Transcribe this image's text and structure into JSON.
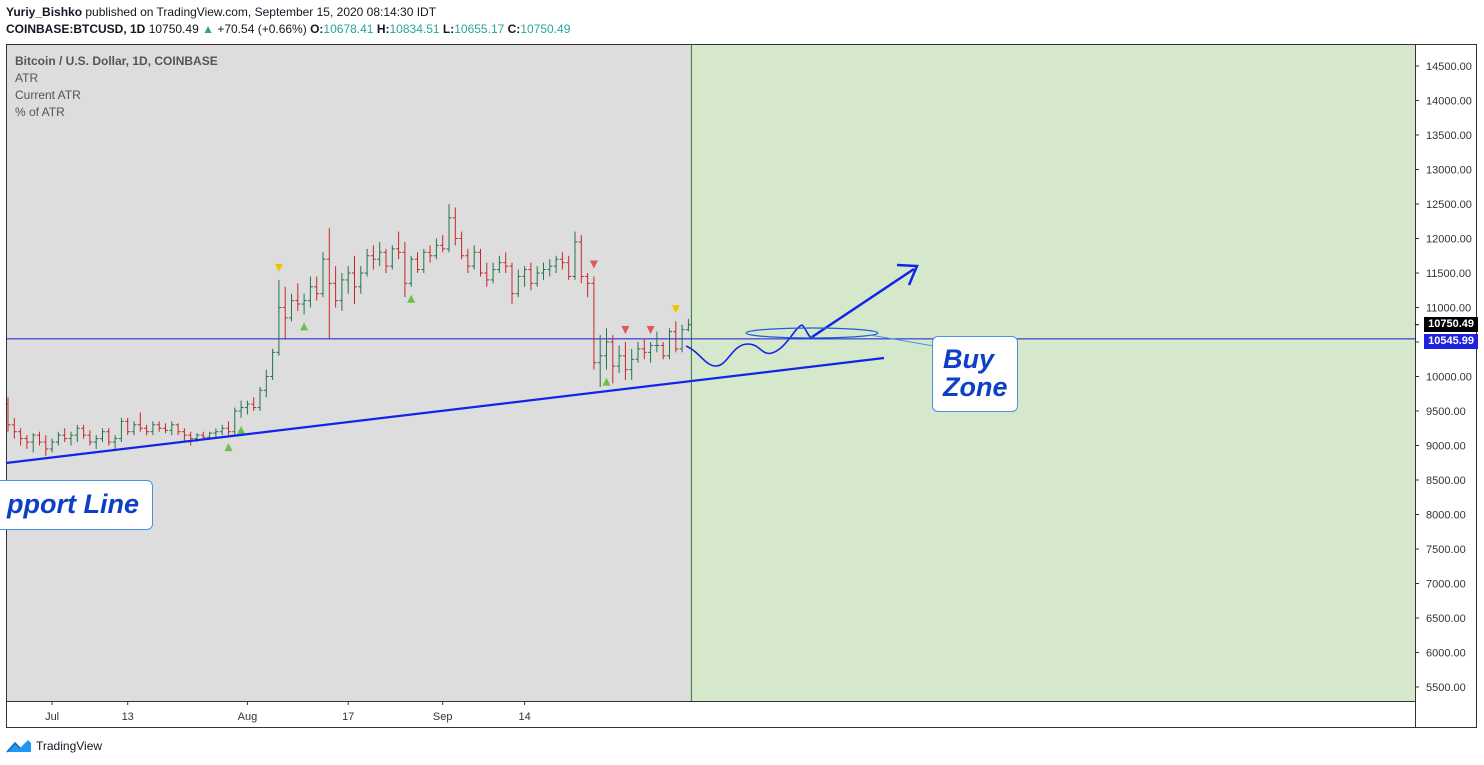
{
  "header": {
    "author": "Yuriy_Bishko",
    "published_text": "published on TradingView.com, September 15, 2020 08:14:30 IDT"
  },
  "quote": {
    "symbol": "COINBASE:BTCUSD, 1D",
    "last": "10750.49",
    "change": "+70.54 (+0.66%)",
    "o_label": "O:",
    "o": "10678.41",
    "h_label": "H:",
    "h": "10834.51",
    "l_label": "L:",
    "l": "10655.17",
    "c_label": "C:",
    "c": "10750.49"
  },
  "legend": {
    "title": "Bitcoin / U.S. Dollar, 1D, COINBASE",
    "items": [
      "ATR",
      "Current ATR",
      "% of ATR"
    ]
  },
  "badges": {
    "last_price": "10750.49",
    "horizontal_line": "10545.99"
  },
  "annotations": {
    "support_line": "pport Line",
    "buy_zone_line1": "Buy",
    "buy_zone_line2": "Zone"
  },
  "footer": {
    "brand": "TradingView"
  },
  "colors": {
    "up_bar": "#26734d",
    "down_bar": "#c62828",
    "plot_bg": "#dddddd",
    "zone_bg": "#d5e8cc",
    "drawing_blue": "#1025e6",
    "hline_blue": "#1a1ad6",
    "badge_blue": "#1e22e0"
  },
  "chart_data": {
    "type": "ohlc",
    "title": "Bitcoin / U.S. Dollar, 1D, COINBASE",
    "y_range": [
      5300,
      14700
    ],
    "y_ticks": [
      "14500.00",
      "14000.00",
      "13500.00",
      "13000.00",
      "12500.00",
      "12000.00",
      "11500.00",
      "11000.00",
      "10500.00",
      "10000.00",
      "9500.00",
      "9000.00",
      "8500.00",
      "8000.00",
      "7500.00",
      "7000.00",
      "6500.00",
      "6000.00",
      "5500.00"
    ],
    "x_ticks": [
      {
        "label": "Jul",
        "date": "2020-07-01"
      },
      {
        "label": "13",
        "date": "2020-07-13"
      },
      {
        "label": "Aug",
        "date": "2020-08-01"
      },
      {
        "label": "17",
        "date": "2020-08-17"
      },
      {
        "label": "Sep",
        "date": "2020-09-01"
      },
      {
        "label": "14",
        "date": "2020-09-14"
      }
    ],
    "first_date": "2020-06-24",
    "bars": [
      [
        9600,
        9700,
        9200,
        9300
      ],
      [
        9300,
        9400,
        9100,
        9200
      ],
      [
        9200,
        9250,
        9000,
        9100
      ],
      [
        9100,
        9150,
        8950,
        9050
      ],
      [
        9050,
        9180,
        8900,
        9150
      ],
      [
        9150,
        9200,
        9000,
        9050
      ],
      [
        9050,
        9150,
        8850,
        8950
      ],
      [
        8950,
        9100,
        8900,
        9050
      ],
      [
        9050,
        9200,
        9000,
        9150
      ],
      [
        9150,
        9250,
        9050,
        9100
      ],
      [
        9100,
        9200,
        9000,
        9150
      ],
      [
        9150,
        9300,
        9050,
        9250
      ],
      [
        9250,
        9300,
        9100,
        9150
      ],
      [
        9150,
        9220,
        9000,
        9050
      ],
      [
        9050,
        9150,
        8950,
        9100
      ],
      [
        9100,
        9250,
        9050,
        9200
      ],
      [
        9200,
        9250,
        9000,
        9050
      ],
      [
        9050,
        9150,
        8950,
        9100
      ],
      [
        9100,
        9400,
        9050,
        9350
      ],
      [
        9350,
        9400,
        9150,
        9200
      ],
      [
        9200,
        9350,
        9150,
        9300
      ],
      [
        9300,
        9480,
        9200,
        9250
      ],
      [
        9250,
        9300,
        9150,
        9200
      ],
      [
        9200,
        9350,
        9150,
        9300
      ],
      [
        9300,
        9350,
        9200,
        9250
      ],
      [
        9250,
        9320,
        9180,
        9220
      ],
      [
        9220,
        9350,
        9150,
        9300
      ],
      [
        9300,
        9320,
        9150,
        9200
      ],
      [
        9200,
        9250,
        9050,
        9150
      ],
      [
        9150,
        9200,
        9000,
        9100
      ],
      [
        9100,
        9180,
        9050,
        9150
      ],
      [
        9150,
        9200,
        9080,
        9120
      ],
      [
        9120,
        9200,
        9080,
        9180
      ],
      [
        9180,
        9250,
        9120,
        9200
      ],
      [
        9200,
        9300,
        9150,
        9250
      ],
      [
        9250,
        9350,
        9150,
        9200
      ],
      [
        9200,
        9550,
        9150,
        9500
      ],
      [
        9500,
        9650,
        9400,
        9550
      ],
      [
        9550,
        9650,
        9450,
        9600
      ],
      [
        9600,
        9700,
        9500,
        9550
      ],
      [
        9550,
        9850,
        9500,
        9800
      ],
      [
        9800,
        10100,
        9700,
        10000
      ],
      [
        10000,
        10400,
        9950,
        10350
      ],
      [
        10350,
        11400,
        10300,
        11000
      ],
      [
        11000,
        11300,
        10550,
        10850
      ],
      [
        10850,
        11200,
        10800,
        11100
      ],
      [
        11100,
        11350,
        10950,
        11050
      ],
      [
        11050,
        11200,
        10900,
        11100
      ],
      [
        11100,
        11450,
        11000,
        11300
      ],
      [
        11300,
        11450,
        11100,
        11200
      ],
      [
        11200,
        11800,
        11150,
        11700
      ],
      [
        11700,
        12150,
        10550,
        11350
      ],
      [
        11350,
        11600,
        11000,
        11100
      ],
      [
        11100,
        11500,
        10950,
        11400
      ],
      [
        11400,
        11600,
        11200,
        11500
      ],
      [
        11500,
        11750,
        11050,
        11300
      ],
      [
        11300,
        11600,
        11200,
        11500
      ],
      [
        11500,
        11850,
        11450,
        11750
      ],
      [
        11750,
        11900,
        11550,
        11700
      ],
      [
        11700,
        11950,
        11600,
        11800
      ],
      [
        11800,
        11850,
        11500,
        11600
      ],
      [
        11600,
        11900,
        11550,
        11850
      ],
      [
        11850,
        12100,
        11700,
        11800
      ],
      [
        11800,
        11950,
        11150,
        11350
      ],
      [
        11350,
        11750,
        11300,
        11700
      ],
      [
        11700,
        11800,
        11500,
        11550
      ],
      [
        11550,
        11850,
        11500,
        11800
      ],
      [
        11800,
        11900,
        11650,
        11750
      ],
      [
        11750,
        12000,
        11700,
        11900
      ],
      [
        11900,
        12050,
        11800,
        11850
      ],
      [
        11850,
        12500,
        11800,
        12300
      ],
      [
        12300,
        12450,
        11900,
        12000
      ],
      [
        12000,
        12100,
        11700,
        11750
      ],
      [
        11750,
        11850,
        11500,
        11600
      ],
      [
        11600,
        11900,
        11550,
        11800
      ],
      [
        11800,
        11850,
        11450,
        11500
      ],
      [
        11500,
        11650,
        11300,
        11400
      ],
      [
        11400,
        11650,
        11350,
        11550
      ],
      [
        11550,
        11750,
        11500,
        11650
      ],
      [
        11650,
        11800,
        11500,
        11600
      ],
      [
        11600,
        11650,
        11050,
        11200
      ],
      [
        11200,
        11550,
        11150,
        11450
      ],
      [
        11450,
        11600,
        11300,
        11550
      ],
      [
        11550,
        11650,
        11250,
        11350
      ],
      [
        11350,
        11600,
        11300,
        11500
      ],
      [
        11500,
        11650,
        11400,
        11550
      ],
      [
        11550,
        11700,
        11450,
        11600
      ],
      [
        11600,
        11750,
        11500,
        11700
      ],
      [
        11700,
        11800,
        11550,
        11650
      ],
      [
        11650,
        11750,
        11400,
        11450
      ],
      [
        11450,
        12100,
        11400,
        11950
      ],
      [
        11950,
        12050,
        11350,
        11450
      ],
      [
        11450,
        11500,
        11150,
        11350
      ],
      [
        11350,
        11450,
        10100,
        10200
      ],
      [
        10200,
        10600,
        9850,
        10300
      ],
      [
        10300,
        10700,
        10100,
        10500
      ],
      [
        10500,
        10600,
        9900,
        10150
      ],
      [
        10150,
        10450,
        10050,
        10300
      ],
      [
        10300,
        10500,
        9950,
        10100
      ],
      [
        10100,
        10400,
        9950,
        10250
      ],
      [
        10250,
        10500,
        10200,
        10400
      ],
      [
        10400,
        10550,
        10250,
        10350
      ],
      [
        10350,
        10500,
        10200,
        10450
      ],
      [
        10450,
        10650,
        10350,
        10450
      ],
      [
        10450,
        10500,
        10250,
        10300
      ],
      [
        10300,
        10700,
        10250,
        10650
      ],
      [
        10650,
        10800,
        10350,
        10400
      ],
      [
        10400,
        10750,
        10350,
        10680
      ],
      [
        10678,
        10835,
        10655,
        10750
      ]
    ],
    "markers": [
      {
        "bar": 35,
        "type": "up",
        "color": "green"
      },
      {
        "bar": 37,
        "type": "up",
        "color": "green"
      },
      {
        "bar": 43,
        "type": "down",
        "color": "yellow"
      },
      {
        "bar": 47,
        "type": "up",
        "color": "green"
      },
      {
        "bar": 64,
        "type": "up",
        "color": "green"
      },
      {
        "bar": 93,
        "type": "down",
        "color": "red"
      },
      {
        "bar": 95,
        "type": "up",
        "color": "green"
      },
      {
        "bar": 98,
        "type": "down",
        "color": "red"
      },
      {
        "bar": 102,
        "type": "down",
        "color": "red"
      },
      {
        "bar": 106,
        "type": "down",
        "color": "yellow"
      }
    ],
    "horizontal_line": 10545.99,
    "last_price": 10750.49
  }
}
